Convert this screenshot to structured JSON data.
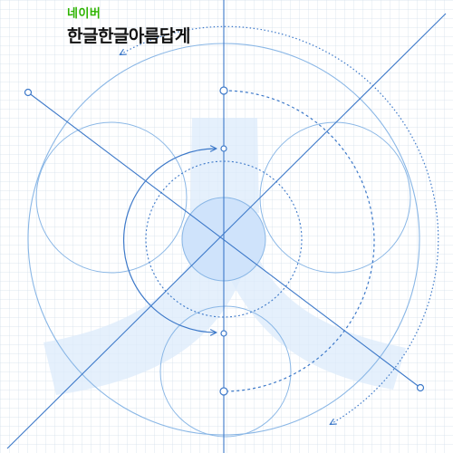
{
  "logo": {
    "brand": "네이버",
    "tagline": "한글한글아름답게"
  },
  "colors": {
    "brand": "#2db400",
    "line": "#3d79c9",
    "light_line": "#8ab7e6",
    "fill": "#dcebfb",
    "core_fill": "#cfe3fb"
  }
}
